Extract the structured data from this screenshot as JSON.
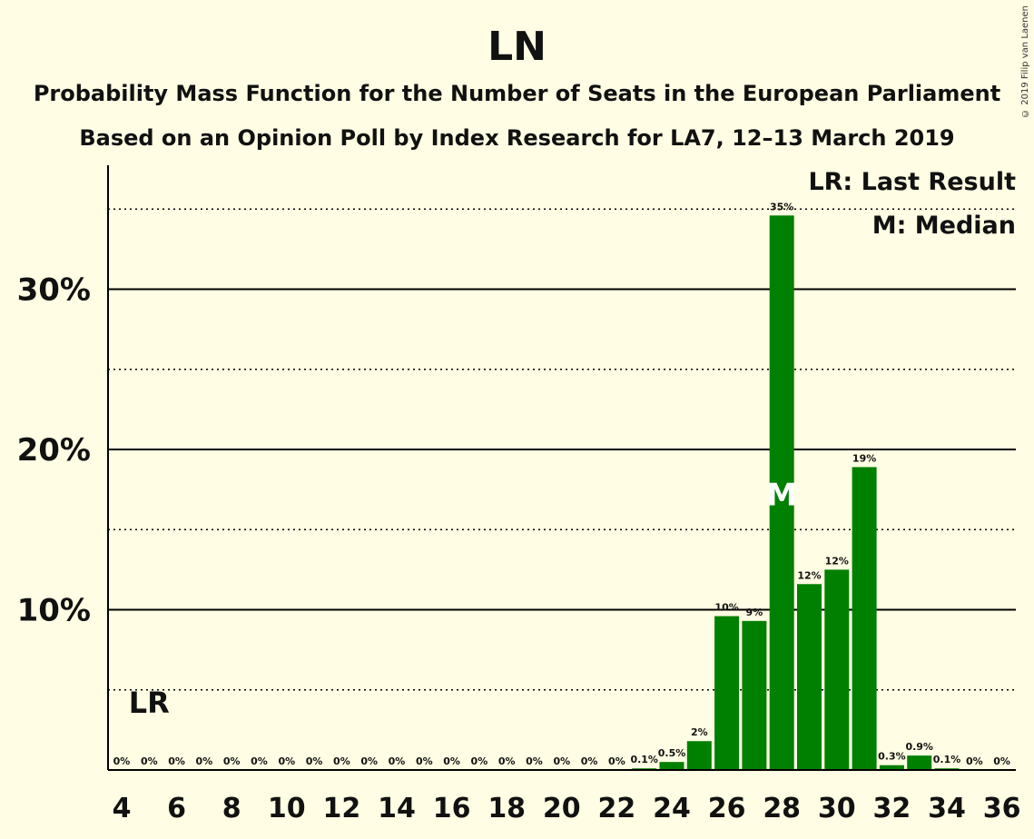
{
  "chart_data": {
    "type": "bar",
    "title": "LN",
    "subtitle_line1": "Probability Mass Function for the Number of Seats in the European Parliament",
    "subtitle_line2": "Based on an Opinion Poll by Index Research for LA7, 12–13 March 2019",
    "copyright": "© 2019 Filip van Laenen",
    "legend": [
      "LR: Last Result",
      "M: Median"
    ],
    "x": [
      4,
      5,
      6,
      7,
      8,
      9,
      10,
      11,
      12,
      13,
      14,
      15,
      16,
      17,
      18,
      19,
      20,
      21,
      22,
      23,
      24,
      25,
      26,
      27,
      28,
      29,
      30,
      31,
      32,
      33,
      34,
      35,
      36
    ],
    "values": [
      0,
      0,
      0,
      0,
      0,
      0,
      0,
      0,
      0,
      0,
      0,
      0,
      0,
      0,
      0,
      0,
      0,
      0,
      0,
      0.1,
      0.5,
      1.8,
      9.6,
      9.3,
      34.6,
      11.6,
      12.5,
      18.9,
      0.3,
      0.9,
      0.1,
      0,
      0
    ],
    "labels": [
      "0%",
      "0%",
      "0%",
      "0%",
      "0%",
      "0%",
      "0%",
      "0%",
      "0%",
      "0%",
      "0%",
      "0%",
      "0%",
      "0%",
      "0%",
      "0%",
      "0%",
      "0%",
      "0%",
      "0.1%",
      "0.5%",
      "2%",
      "10%",
      "9%",
      "35%",
      "12%",
      "12%",
      "19%",
      "0.3%",
      "0.9%",
      "0.1%",
      "0%",
      "0%"
    ],
    "xticks": [
      4,
      6,
      8,
      10,
      12,
      14,
      16,
      18,
      20,
      22,
      24,
      26,
      28,
      30,
      32,
      34,
      36
    ],
    "yticks": [
      {
        "value": 10,
        "label": "10%"
      },
      {
        "value": 20,
        "label": "20%"
      },
      {
        "value": 30,
        "label": "30%"
      }
    ],
    "ylim": [
      0,
      37.5
    ],
    "last_result_seat": 5,
    "last_result_label": "LR",
    "median_seat": 28,
    "median_label": "M",
    "bar_color": "#008000",
    "background": "#fffde3"
  }
}
